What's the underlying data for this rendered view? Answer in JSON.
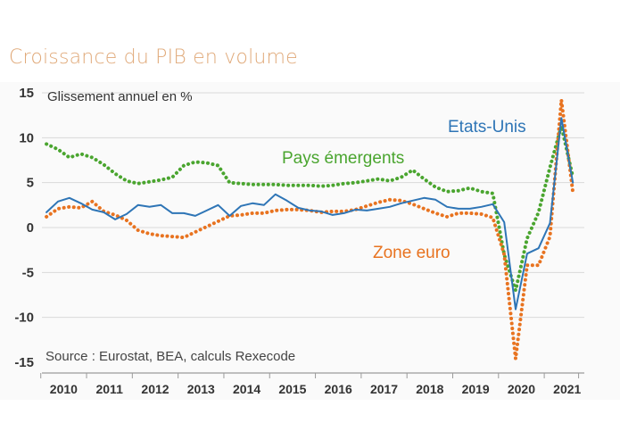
{
  "title": "Croissance du PIB en volume",
  "chart_data": {
    "type": "line",
    "subtitle": "Glissement annuel en %",
    "source": "Source : Eurostat, BEA, calculs Rexecode",
    "ylim": [
      -15,
      15
    ],
    "yticks": [
      "15",
      "10",
      "5",
      "0",
      "-5",
      "-10",
      "-15"
    ],
    "ytick_values": [
      15,
      10,
      5,
      0,
      -5,
      -10,
      -15
    ],
    "xlim": [
      2009.9,
      2021.75
    ],
    "categories": [
      "2010",
      "2011",
      "2012",
      "2013",
      "2014",
      "2015",
      "2016",
      "2017",
      "2018",
      "2019",
      "2020",
      "2021"
    ],
    "series": [
      {
        "name": "Etats-Unis",
        "color": "#2e75b6",
        "style": "solid",
        "x": [
          2010.0,
          2010.25,
          2010.5,
          2010.75,
          2011.0,
          2011.25,
          2011.5,
          2011.75,
          2012.0,
          2012.25,
          2012.5,
          2012.75,
          2013.0,
          2013.25,
          2013.5,
          2013.75,
          2014.0,
          2014.25,
          2014.5,
          2014.75,
          2015.0,
          2015.25,
          2015.5,
          2015.75,
          2016.0,
          2016.25,
          2016.5,
          2016.75,
          2017.0,
          2017.25,
          2017.5,
          2017.75,
          2018.0,
          2018.25,
          2018.5,
          2018.75,
          2019.0,
          2019.25,
          2019.5,
          2019.75,
          2020.0,
          2020.25,
          2020.5,
          2020.75,
          2021.0,
          2021.25,
          2021.5
        ],
        "values": [
          1.7,
          2.9,
          3.3,
          2.7,
          2.0,
          1.7,
          0.9,
          1.5,
          2.5,
          2.3,
          2.5,
          1.6,
          1.6,
          1.3,
          1.9,
          2.5,
          1.3,
          2.4,
          2.7,
          2.5,
          3.7,
          3.0,
          2.2,
          1.9,
          1.8,
          1.4,
          1.6,
          2.0,
          1.9,
          2.1,
          2.3,
          2.7,
          3.0,
          3.3,
          3.1,
          2.3,
          2.1,
          2.1,
          2.3,
          2.6,
          0.6,
          -9.1,
          -2.9,
          -2.3,
          0.5,
          12.2,
          5.0
        ]
      },
      {
        "name": "Pays émergents",
        "color": "#4aa52f",
        "style": "dotted",
        "x": [
          2010.0,
          2010.25,
          2010.5,
          2010.75,
          2011.0,
          2011.25,
          2011.5,
          2011.75,
          2012.0,
          2012.25,
          2012.5,
          2012.75,
          2013.0,
          2013.25,
          2013.5,
          2013.75,
          2014.0,
          2014.25,
          2014.5,
          2014.75,
          2015.0,
          2015.25,
          2015.5,
          2015.75,
          2016.0,
          2016.25,
          2016.5,
          2016.75,
          2017.0,
          2017.25,
          2017.5,
          2017.75,
          2018.0,
          2018.25,
          2018.5,
          2018.75,
          2019.0,
          2019.25,
          2019.5,
          2019.75,
          2020.0,
          2020.25,
          2020.5,
          2020.75,
          2021.0,
          2021.25,
          2021.5
        ],
        "values": [
          9.3,
          8.7,
          7.8,
          8.2,
          7.8,
          7.0,
          6.0,
          5.2,
          4.9,
          5.1,
          5.3,
          5.6,
          6.9,
          7.3,
          7.2,
          6.9,
          5.0,
          4.9,
          4.8,
          4.8,
          4.8,
          4.7,
          4.7,
          4.7,
          4.6,
          4.7,
          4.9,
          5.0,
          5.2,
          5.4,
          5.2,
          5.6,
          6.4,
          5.4,
          4.5,
          4.0,
          4.1,
          4.4,
          4.0,
          3.8,
          -3.0,
          -7.0,
          -1.2,
          1.7,
          6.7,
          11.3,
          5.6
        ]
      },
      {
        "name": "Zone euro",
        "color": "#e87320",
        "style": "dotted",
        "x": [
          2010.0,
          2010.25,
          2010.5,
          2010.75,
          2011.0,
          2011.25,
          2011.5,
          2011.75,
          2012.0,
          2012.25,
          2012.5,
          2012.75,
          2013.0,
          2013.25,
          2013.5,
          2013.75,
          2014.0,
          2014.25,
          2014.5,
          2014.75,
          2015.0,
          2015.25,
          2015.5,
          2015.75,
          2016.0,
          2016.25,
          2016.5,
          2016.75,
          2017.0,
          2017.25,
          2017.5,
          2017.75,
          2018.0,
          2018.25,
          2018.5,
          2018.75,
          2019.0,
          2019.25,
          2019.5,
          2019.75,
          2020.0,
          2020.25,
          2020.5,
          2020.75,
          2021.0,
          2021.25,
          2021.5
        ],
        "values": [
          1.2,
          2.1,
          2.3,
          2.2,
          2.9,
          1.8,
          1.4,
          0.8,
          -0.3,
          -0.7,
          -0.9,
          -1.0,
          -1.1,
          -0.5,
          0.1,
          0.7,
          1.3,
          1.4,
          1.6,
          1.6,
          1.9,
          2.0,
          2.0,
          1.9,
          1.7,
          1.8,
          1.8,
          2.0,
          2.4,
          2.8,
          3.1,
          3.0,
          2.6,
          2.1,
          1.6,
          1.2,
          1.6,
          1.6,
          1.5,
          1.1,
          -3.0,
          -14.6,
          -4.2,
          -4.2,
          -1.0,
          14.2,
          3.9
        ]
      }
    ],
    "annotations": [
      {
        "text": "Etats-Unis",
        "series": "Etats-Unis"
      },
      {
        "text": "Pays émergents",
        "series": "Pays émergents"
      },
      {
        "text": "Zone euro",
        "series": "Zone euro"
      }
    ]
  }
}
